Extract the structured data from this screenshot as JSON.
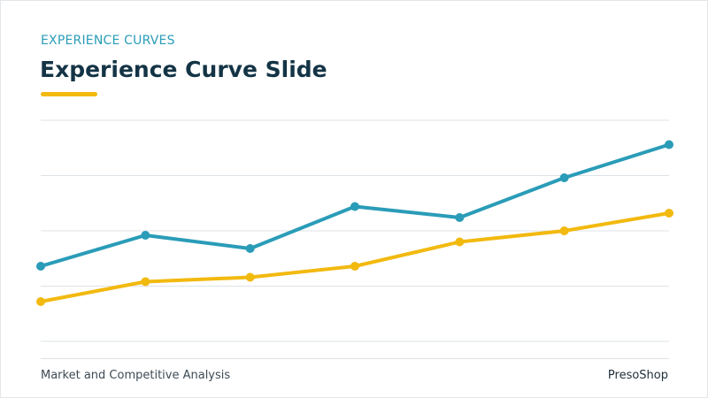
{
  "slide": {
    "eyebrow": "EXPERIENCE CURVES",
    "title": "Experience Curve Slide",
    "footer_left": "Market and Competitive Analysis",
    "footer_right": "PresoShop"
  },
  "colors": {
    "teal": "#2a9cb8",
    "gold": "#f2b90f",
    "navy": "#143446",
    "grid": "#dde3e7"
  },
  "chart_data": {
    "type": "line",
    "title": "",
    "xlabel": "",
    "ylabel": "",
    "x": [
      1,
      2,
      3,
      4,
      5,
      6,
      7
    ],
    "ylim": [
      0,
      100
    ],
    "grid": true,
    "legend": "none",
    "series": [
      {
        "color": "#2a9cb8",
        "values": [
          34,
          48,
          42,
          61,
          56,
          74,
          89
        ]
      },
      {
        "color": "#f2b90f",
        "values": [
          18,
          27,
          29,
          34,
          45,
          50,
          58
        ]
      }
    ]
  }
}
